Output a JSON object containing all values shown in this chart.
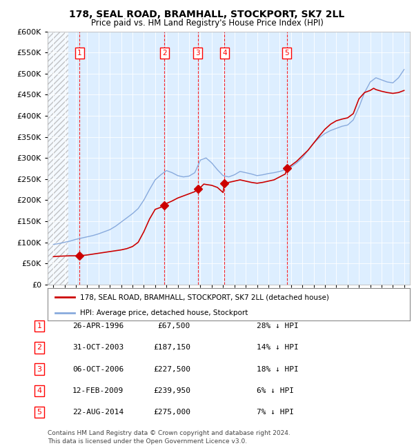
{
  "title": "178, SEAL ROAD, BRAMHALL, STOCKPORT, SK7 2LL",
  "subtitle": "Price paid vs. HM Land Registry's House Price Index (HPI)",
  "legend_property": "178, SEAL ROAD, BRAMHALL, STOCKPORT, SK7 2LL (detached house)",
  "legend_hpi": "HPI: Average price, detached house, Stockport",
  "sales": [
    {
      "num": 1,
      "date": "26-APR-1996",
      "year": 1996.32,
      "price": 67500,
      "hpi_pct": "28% ↓ HPI"
    },
    {
      "num": 2,
      "date": "31-OCT-2003",
      "year": 2003.83,
      "price": 187150,
      "hpi_pct": "14% ↓ HPI"
    },
    {
      "num": 3,
      "date": "06-OCT-2006",
      "year": 2006.76,
      "price": 227500,
      "hpi_pct": "18% ↓ HPI"
    },
    {
      "num": 4,
      "date": "12-FEB-2009",
      "year": 2009.12,
      "price": 239950,
      "hpi_pct": "6% ↓ HPI"
    },
    {
      "num": 5,
      "date": "22-AUG-2014",
      "year": 2014.64,
      "price": 275000,
      "hpi_pct": "7% ↓ HPI"
    }
  ],
  "ylim": [
    0,
    600000
  ],
  "xlim": [
    1993.5,
    2025.5
  ],
  "hatch_end_year": 1995.3,
  "footer": "Contains HM Land Registry data © Crown copyright and database right 2024.\nThis data is licensed under the Open Government Licence v3.0.",
  "property_color": "#cc0000",
  "hpi_color": "#88aadd",
  "background_plot": "#ddeeff"
}
